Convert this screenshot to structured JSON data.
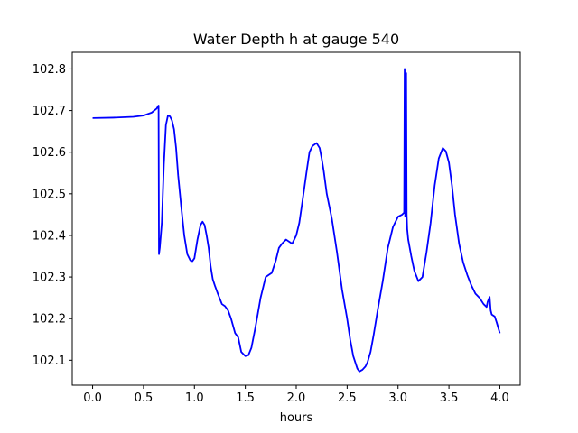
{
  "chart_data": {
    "type": "line",
    "title": "Water Depth h at gauge 540",
    "xlabel": "hours",
    "ylabel": "",
    "xlim": [
      -0.2,
      4.2
    ],
    "ylim": [
      102.04,
      102.84
    ],
    "xticks": [
      0.0,
      0.5,
      1.0,
      1.5,
      2.0,
      2.5,
      3.0,
      3.5,
      4.0
    ],
    "xtick_labels": [
      "0.0",
      "0.5",
      "1.0",
      "1.5",
      "2.0",
      "2.5",
      "3.0",
      "3.5",
      "4.0"
    ],
    "yticks": [
      102.1,
      102.2,
      102.3,
      102.4,
      102.5,
      102.6,
      102.7,
      102.8
    ],
    "ytick_labels": [
      "102.1",
      "102.2",
      "102.3",
      "102.4",
      "102.5",
      "102.6",
      "102.7",
      "102.8"
    ],
    "grid": false,
    "legend": "none",
    "series": [
      {
        "color": "#0000ff",
        "x": [
          0.0,
          0.2,
          0.4,
          0.5,
          0.58,
          0.63,
          0.648,
          0.652,
          0.66,
          0.68,
          0.7,
          0.72,
          0.74,
          0.76,
          0.78,
          0.8,
          0.82,
          0.84,
          0.87,
          0.9,
          0.93,
          0.96,
          0.98,
          1.0,
          1.03,
          1.06,
          1.08,
          1.1,
          1.12,
          1.14,
          1.16,
          1.18,
          1.2,
          1.23,
          1.27,
          1.3,
          1.33,
          1.36,
          1.4,
          1.43,
          1.46,
          1.5,
          1.53,
          1.56,
          1.6,
          1.65,
          1.7,
          1.73,
          1.76,
          1.8,
          1.83,
          1.86,
          1.9,
          1.93,
          1.96,
          2.0,
          2.03,
          2.06,
          2.1,
          2.13,
          2.16,
          2.2,
          2.23,
          2.25,
          2.27,
          2.3,
          2.35,
          2.4,
          2.45,
          2.5,
          2.53,
          2.56,
          2.6,
          2.62,
          2.65,
          2.68,
          2.7,
          2.73,
          2.76,
          2.8,
          2.85,
          2.9,
          2.95,
          3.0,
          3.04,
          3.06,
          3.065,
          3.07,
          3.075,
          3.08,
          3.085,
          3.09,
          3.1,
          3.13,
          3.16,
          3.2,
          3.24,
          3.28,
          3.32,
          3.36,
          3.4,
          3.44,
          3.47,
          3.5,
          3.53,
          3.56,
          3.6,
          3.64,
          3.68,
          3.72,
          3.76,
          3.8,
          3.84,
          3.87,
          3.88,
          3.9,
          3.91,
          3.92,
          3.95,
          3.97,
          4.0
        ],
        "y": [
          102.682,
          102.683,
          102.685,
          102.688,
          102.695,
          102.705,
          102.712,
          102.355,
          102.37,
          102.43,
          102.57,
          102.665,
          102.688,
          102.686,
          102.676,
          102.655,
          102.61,
          102.545,
          102.47,
          102.4,
          102.355,
          102.34,
          102.338,
          102.345,
          102.39,
          102.425,
          102.433,
          102.425,
          102.4,
          102.37,
          102.325,
          102.295,
          102.28,
          102.26,
          102.235,
          102.23,
          102.22,
          102.2,
          102.165,
          102.155,
          102.12,
          102.11,
          102.112,
          102.13,
          102.18,
          102.25,
          102.3,
          102.305,
          102.31,
          102.34,
          102.37,
          102.38,
          102.39,
          102.385,
          102.38,
          102.4,
          102.43,
          102.48,
          102.55,
          102.6,
          102.615,
          102.622,
          102.61,
          102.585,
          102.555,
          102.5,
          102.44,
          102.36,
          102.27,
          102.2,
          102.15,
          102.11,
          102.08,
          102.073,
          102.077,
          102.085,
          102.095,
          102.12,
          102.16,
          102.22,
          102.29,
          102.37,
          102.42,
          102.445,
          102.45,
          102.455,
          102.8,
          102.445,
          102.45,
          102.79,
          102.45,
          102.415,
          102.39,
          102.35,
          102.315,
          102.29,
          102.3,
          102.36,
          102.43,
          102.52,
          102.585,
          102.61,
          102.602,
          102.575,
          102.52,
          102.45,
          102.38,
          102.335,
          102.305,
          102.28,
          102.26,
          102.25,
          102.235,
          102.228,
          102.24,
          102.252,
          102.22,
          102.21,
          102.205,
          102.19,
          102.165
        ]
      }
    ]
  }
}
